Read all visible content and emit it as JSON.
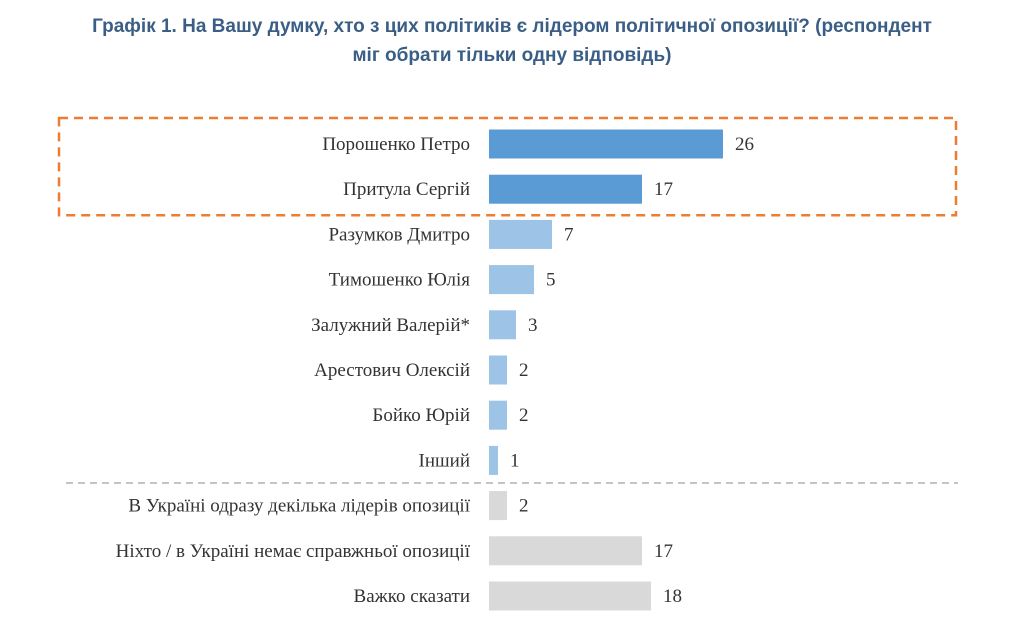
{
  "chart_data": {
    "type": "bar",
    "orientation": "horizontal",
    "title_lines": [
      "Графік 1. На Вашу думку, хто з цих політиків є лідером політичної опозиції? (респондент",
      "міг обрати тільки одну відповідь)"
    ],
    "categories": [
      "Порошенко Петро",
      "Притула Сергій",
      "Разумков Дмитро",
      "Тимошенко Юлія",
      "Залужний Валерій*",
      "Арестович Олексій",
      "Бойко Юрій",
      "Інший",
      "В Україні одразу декілька лідерів опозиції",
      "Ніхто / в Україні немає справжньої опозиції",
      "Важко сказати"
    ],
    "values": [
      26,
      17,
      7,
      5,
      3,
      2,
      2,
      1,
      2,
      17,
      18
    ],
    "bar_colors": [
      "#5b9bd5",
      "#5b9bd5",
      "#9dc3e6",
      "#9dc3e6",
      "#9dc3e6",
      "#9dc3e6",
      "#9dc3e6",
      "#9dc3e6",
      "#d9d9d9",
      "#d9d9d9",
      "#d9d9d9"
    ],
    "highlight_color": "#ed7d31",
    "highlighted_count": 2,
    "separator_after_index": 7,
    "xlim": [
      0,
      26
    ],
    "grid": false,
    "legend": "none"
  }
}
